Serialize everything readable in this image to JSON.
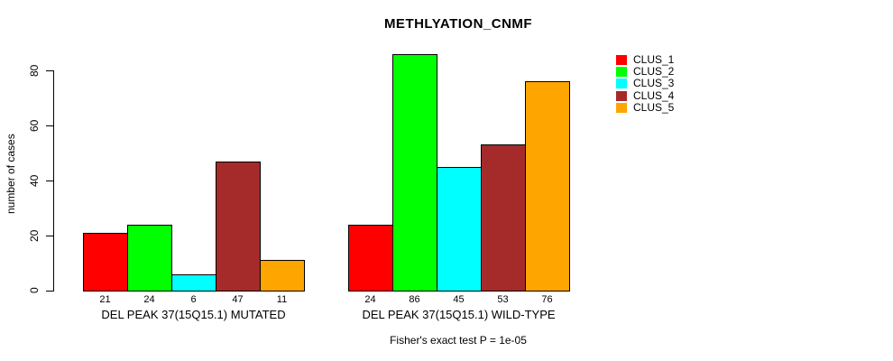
{
  "chart_data": {
    "type": "bar",
    "title": "METHLYATION_CNMF",
    "ylabel": "number of cases",
    "xlabel": "",
    "ylim": [
      0,
      86
    ],
    "yticks": [
      0,
      20,
      40,
      60,
      80
    ],
    "grid": false,
    "legend_position": "right",
    "series": [
      {
        "name": "CLUS_1",
        "color": "#FF0000"
      },
      {
        "name": "CLUS_2",
        "color": "#00FF00"
      },
      {
        "name": "CLUS_3",
        "color": "#00FFFF"
      },
      {
        "name": "CLUS_4",
        "color": "#A52A2A"
      },
      {
        "name": "CLUS_5",
        "color": "#FFA500"
      }
    ],
    "groups": [
      {
        "label": "DEL PEAK 37(15Q15.1) MUTATED",
        "values": [
          21,
          24,
          6,
          47,
          11
        ]
      },
      {
        "label": "DEL PEAK 37(15Q15.1) WILD-TYPE",
        "values": [
          24,
          86,
          45,
          53,
          76
        ]
      }
    ],
    "annotation": "Fisher's exact test P = 1e-05"
  }
}
